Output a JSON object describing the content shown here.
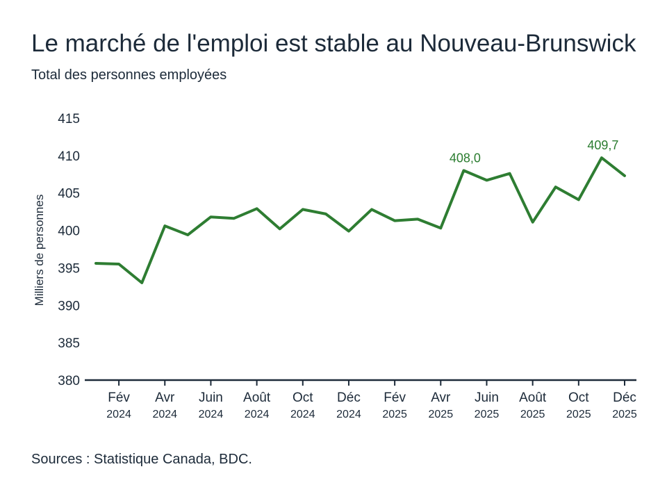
{
  "chart_data": {
    "type": "line",
    "title": "Le marché de l'emploi est stable au Nouveau-Brunswick",
    "subtitle": "Total des personnes employées",
    "ylabel": "Milliers de personnes",
    "xlabel": "",
    "ylim": [
      380,
      415
    ],
    "yticks": [
      380,
      385,
      390,
      395,
      400,
      405,
      410,
      415
    ],
    "series": [
      {
        "name": "Total des personnes employées",
        "color": "#2e7d32",
        "values": [
          395.6,
          395.5,
          393.0,
          400.6,
          399.4,
          401.8,
          401.6,
          402.9,
          400.2,
          402.8,
          402.2,
          399.9,
          402.8,
          401.3,
          401.5,
          400.3,
          408.0,
          406.7,
          407.6,
          401.1,
          405.8,
          404.1,
          409.7,
          407.3
        ]
      }
    ],
    "xticks": [
      {
        "index": 1,
        "month": "Fév",
        "year": "2024"
      },
      {
        "index": 3,
        "month": "Avr",
        "year": "2024"
      },
      {
        "index": 5,
        "month": "Juin",
        "year": "2024"
      },
      {
        "index": 7,
        "month": "Août",
        "year": "2024"
      },
      {
        "index": 9,
        "month": "Oct",
        "year": "2024"
      },
      {
        "index": 11,
        "month": "Déc",
        "year": "2024"
      },
      {
        "index": 13,
        "month": "Fév",
        "year": "2025"
      },
      {
        "index": 15,
        "month": "Avr",
        "year": "2025"
      },
      {
        "index": 17,
        "month": "Juin",
        "year": "2025"
      },
      {
        "index": 19,
        "month": "Août",
        "year": "2025"
      },
      {
        "index": 21,
        "month": "Oct",
        "year": "2025"
      },
      {
        "index": 23,
        "month": "Déc",
        "year": "2025"
      }
    ],
    "annotations": [
      {
        "index": 16,
        "text": "408,0"
      },
      {
        "index": 22,
        "text": "409,7"
      }
    ]
  },
  "source": "Sources : Statistique Canada, BDC."
}
